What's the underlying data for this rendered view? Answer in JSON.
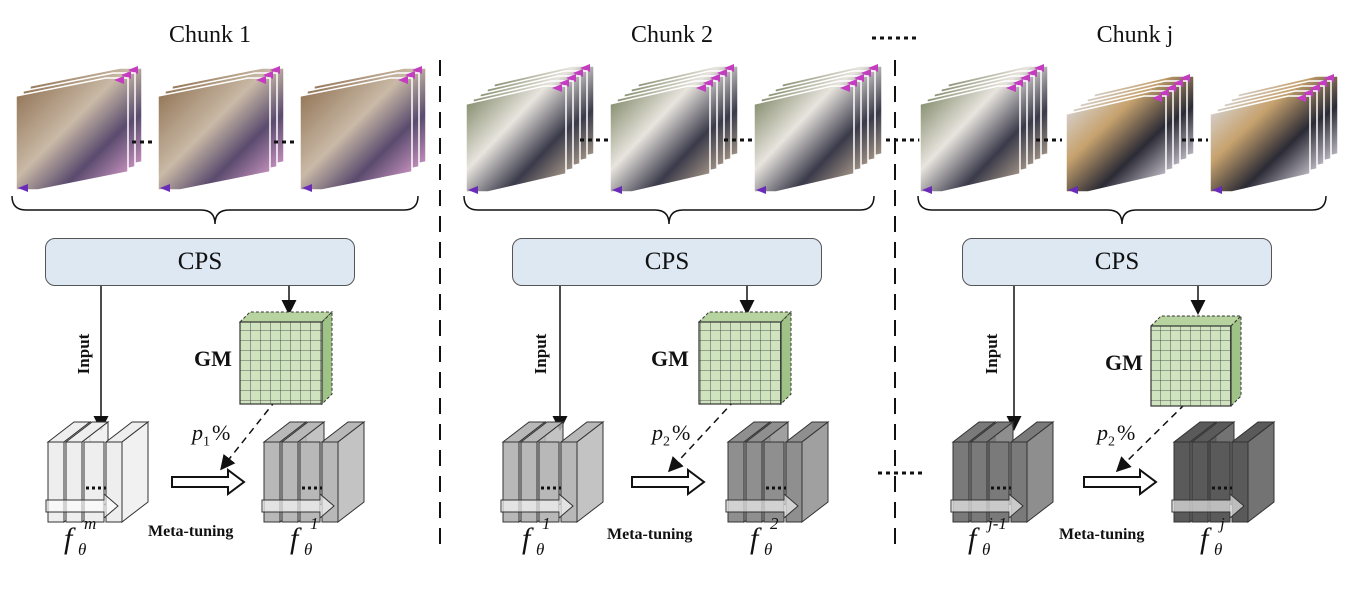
{
  "chunks": [
    {
      "title": "Chunk 1",
      "cps": "CPS",
      "gm": "GM",
      "input": "Input",
      "p": {
        "base": "p",
        "sub": "1",
        "pct": "%"
      },
      "meta": "Meta-tuning",
      "f_left": {
        "base": "f",
        "sup": "m",
        "sub": "θ"
      },
      "f_right": {
        "base": "f",
        "sup": "1",
        "sub": "θ"
      }
    },
    {
      "title": "Chunk 2",
      "cps": "CPS",
      "gm": "GM",
      "input": "Input",
      "p": {
        "base": "p",
        "sub": "2",
        "pct": "%"
      },
      "meta": "Meta-tuning",
      "f_left": {
        "base": "f",
        "sup": "1",
        "sub": "θ"
      },
      "f_right": {
        "base": "f",
        "sup": "2",
        "sub": "θ"
      }
    },
    {
      "title": "Chunk j",
      "cps": "CPS",
      "gm": "GM",
      "input": "Input",
      "p": {
        "base": "p",
        "sub": "2",
        "pct": "%"
      },
      "meta": "Meta-tuning",
      "f_left": {
        "base": "f",
        "sup": "j-1",
        "sub": "θ"
      },
      "f_right": {
        "base": "f",
        "sup": "j",
        "sub": "θ"
      }
    }
  ],
  "colors": {
    "cps_fill": "#dde8f3",
    "gm_fill": "#cfe3bf",
    "model_chunk1_left": "#eeeeee",
    "model_chunk1_right": "#b8b8b8",
    "model_chunk2_left": "#b8b8b8",
    "model_chunk2_right": "#8f8f8f",
    "model_chunkj_left": "#7a7a7a",
    "model_chunkj_right": "#5a5a5a"
  }
}
